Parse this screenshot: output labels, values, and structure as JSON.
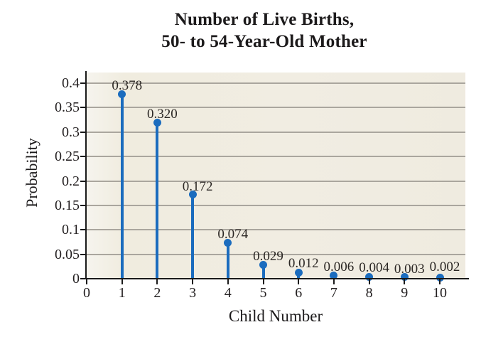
{
  "title": {
    "line1": "Number of Live Births,",
    "line2": "50- to 54-Year-Old Mother"
  },
  "chart_data": {
    "type": "stem",
    "title": "Number of Live Births, 50- to 54-Year-Old Mother",
    "xlabel": "Child Number",
    "ylabel": "Probability",
    "categories": [
      1,
      2,
      3,
      4,
      5,
      6,
      7,
      8,
      9,
      10
    ],
    "values": [
      0.378,
      0.32,
      0.172,
      0.074,
      0.029,
      0.012,
      0.006,
      0.004,
      0.003,
      0.002
    ],
    "point_labels": [
      "0.378",
      "0.320",
      "0.172",
      "0.074",
      "0.029",
      "0.012",
      "0.006",
      "0.004",
      "0.003",
      "0.002"
    ],
    "x_ticks": [
      "0",
      "1",
      "2",
      "3",
      "4",
      "5",
      "6",
      "7",
      "8",
      "9",
      "10"
    ],
    "y_ticks": [
      "0",
      "0.05",
      "0.1",
      "0.15",
      "0.2",
      "0.25",
      "0.3",
      "0.35",
      "0.4"
    ],
    "xlim": [
      0,
      10.7
    ],
    "ylim": [
      0,
      0.42
    ],
    "grid": "horizontal",
    "legend": "none",
    "colors": {
      "stem": "#1b6cbe",
      "plot_background": "#f1ede2",
      "gridline": "#aaa69e",
      "axis": "#1a1a1a",
      "text": "#231f20"
    }
  }
}
